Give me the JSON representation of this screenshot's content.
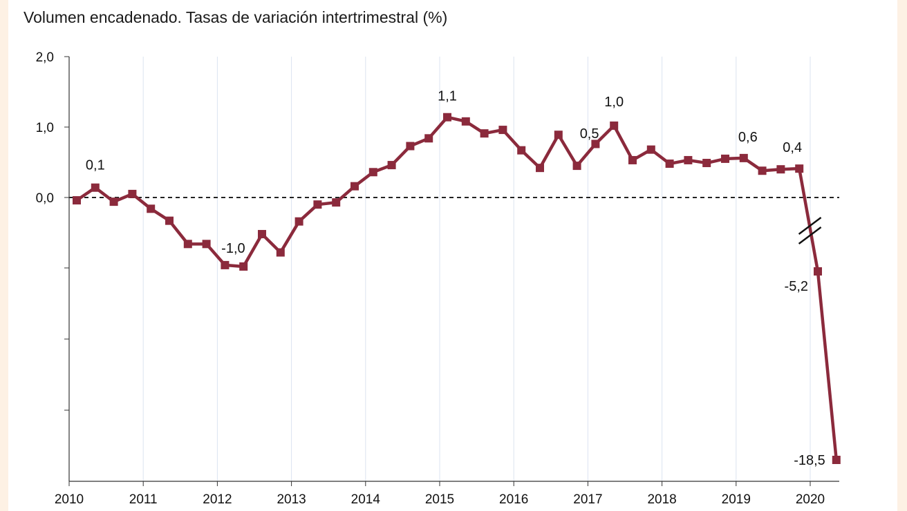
{
  "chart_data": {
    "type": "line",
    "title": "Volumen encadenado. Tasas de variación intertrimestral (%)",
    "xlabel": "",
    "ylabel": "",
    "y_tick_labels": [
      "2,0",
      "1,0",
      "0,0"
    ],
    "x_tick_labels": [
      "2010",
      "2011",
      "2012",
      "2013",
      "2014",
      "2015",
      "2016",
      "2017",
      "2018",
      "2019",
      "2020"
    ],
    "ylim_upper": [
      0,
      2.0
    ],
    "axis_break": true,
    "reference_line": {
      "y": 0.0,
      "style": "dashed"
    },
    "grid": "vertical",
    "colors": {
      "series": "#8b2a3c",
      "grid": "#dbe3f0",
      "axis": "#333333"
    },
    "series": [
      {
        "x": [
          "2010T1",
          "2010T2",
          "2010T3",
          "2010T4",
          "2011T1",
          "2011T2",
          "2011T3",
          "2011T4",
          "2012T1",
          "2012T2",
          "2012T3",
          "2012T4",
          "2013T1",
          "2013T2",
          "2013T3",
          "2013T4",
          "2014T1",
          "2014T2",
          "2014T3",
          "2014T4",
          "2015T1",
          "2015T2",
          "2015T3",
          "2015T4",
          "2016T1",
          "2016T2",
          "2016T3",
          "2016T4",
          "2017T1",
          "2017T2",
          "2017T3",
          "2017T4",
          "2018T1",
          "2018T2",
          "2018T3",
          "2018T4",
          "2019T1",
          "2019T2",
          "2019T3",
          "2019T4",
          "2020T1",
          "2020T2"
        ],
        "values": [
          -0.04,
          0.14,
          -0.06,
          0.05,
          -0.16,
          -0.33,
          -0.66,
          -0.66,
          -0.96,
          -0.98,
          -0.52,
          -0.78,
          -0.34,
          -0.1,
          -0.07,
          0.16,
          0.36,
          0.46,
          0.73,
          0.84,
          1.14,
          1.08,
          0.91,
          0.96,
          0.67,
          0.42,
          0.89,
          0.45,
          0.76,
          1.02,
          0.53,
          0.68,
          0.48,
          0.53,
          0.49,
          0.55,
          0.56,
          0.38,
          0.4,
          0.41,
          -5.2,
          -18.5
        ]
      }
    ],
    "annotations": [
      {
        "text": "0,1",
        "index": 1
      },
      {
        "text": "-1,0",
        "index": 8
      },
      {
        "text": "1,1",
        "index": 20
      },
      {
        "text": "0,5",
        "index": 27
      },
      {
        "text": "1,0",
        "index": 29
      },
      {
        "text": "0,6",
        "index": 36
      },
      {
        "text": "0,4",
        "index": 39
      },
      {
        "text": "-5,2",
        "index": 40
      },
      {
        "text": "-18,5",
        "index": 41
      }
    ]
  }
}
